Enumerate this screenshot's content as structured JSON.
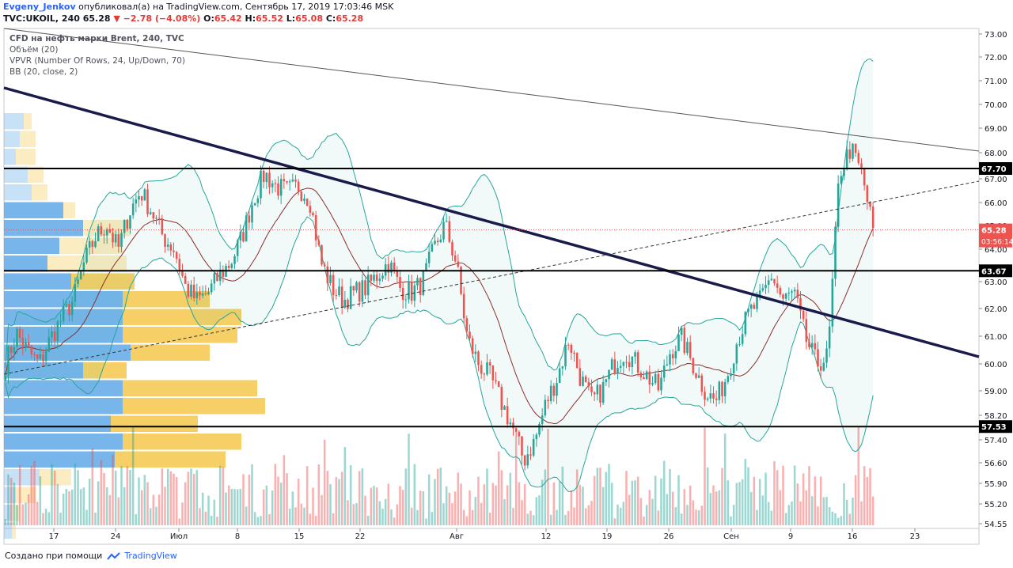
{
  "header": {
    "author": "Evgeny_Jenkov",
    "published_text": "опубликовал(а) на TradingView.com, Сентябрь 17, 2019 17:03:46 MSK",
    "symbol": "TVC:UKOIL, 240",
    "last": "65.28",
    "change": "▼ −2.78 (−4.08%)",
    "ohlc": [
      {
        "label": "O:",
        "value": "65.42"
      },
      {
        "label": "H:",
        "value": "65.52"
      },
      {
        "label": "L:",
        "value": "65.08"
      },
      {
        "label": "C:",
        "value": "65.28"
      }
    ]
  },
  "legend": {
    "title": "CFD на нефть марки Brent, 240, TVC",
    "volume": "Объём (20)",
    "vpvr": "VPVR (Number Of Rows, 24, Up/Down, 70)",
    "bb": "BB (20, close, 2)"
  },
  "footer": {
    "created_with": "Создано при помощи",
    "brand": "TradingView"
  },
  "colors": {
    "up": "#26a69a",
    "down": "#ef5350",
    "bb_band": "#26a69a",
    "bb_basis": "#8b2e2e",
    "trendline": "#1a1a4b",
    "level": "#000000",
    "vp_up": "#5fa8e8",
    "vp_down": "#f5c84c"
  },
  "chart_data": {
    "type": "candlestick",
    "y_axis": {
      "ticks": [
        "73.00",
        "72.00",
        "71.00",
        "70.00",
        "69.00",
        "68.00",
        "67.00",
        "66.00",
        "65.00",
        "64.00",
        "63.00",
        "62.00",
        "61.00",
        "60.00",
        "59.00",
        "58.20",
        "57.40",
        "56.60",
        "55.90",
        "55.20",
        "54.55"
      ],
      "range": [
        54.55,
        73.2
      ]
    },
    "x_axis": {
      "ticks": [
        "17",
        "24",
        "Июл",
        "8",
        "15",
        "22",
        "Авг",
        "12",
        "19",
        "26",
        "Сен",
        "9",
        "16",
        "23"
      ]
    },
    "levels": [
      {
        "value": 67.7,
        "label": "67.70"
      },
      {
        "value": 63.67,
        "label": "63.67"
      },
      {
        "value": 57.53,
        "label": "57.53"
      }
    ],
    "last_price": {
      "value": 65.28,
      "label": "65.28",
      "countdown": "03:56:14"
    },
    "close_series": [
      60.0,
      61.2,
      60.5,
      60.0,
      61.0,
      61.8,
      62.5,
      64.0,
      65.0,
      65.5,
      64.5,
      66.0,
      66.8,
      66.0,
      65.0,
      64.5,
      63.0,
      62.5,
      62.8,
      63.5,
      64.0,
      65.0,
      66.5,
      67.5,
      67.0,
      66.8,
      67.0,
      66.5,
      64.0,
      63.0,
      62.5,
      62.8,
      63.0,
      63.5,
      64.0,
      63.0,
      62.8,
      63.2,
      64.5,
      65.5,
      64.0,
      61.0,
      60.0,
      59.5,
      58.5,
      57.5,
      56.2,
      57.0,
      58.5,
      59.5,
      61.0,
      59.5,
      58.5,
      59.0,
      60.0,
      60.5,
      60.0,
      59.5,
      59.0,
      60.5,
      61.0,
      60.0,
      59.0,
      58.5,
      59.5,
      61.0,
      62.0,
      62.5,
      63.5,
      62.5,
      62.8,
      61.0,
      60.0,
      60.3,
      67.5,
      68.5,
      67.5,
      65.3
    ]
  }
}
